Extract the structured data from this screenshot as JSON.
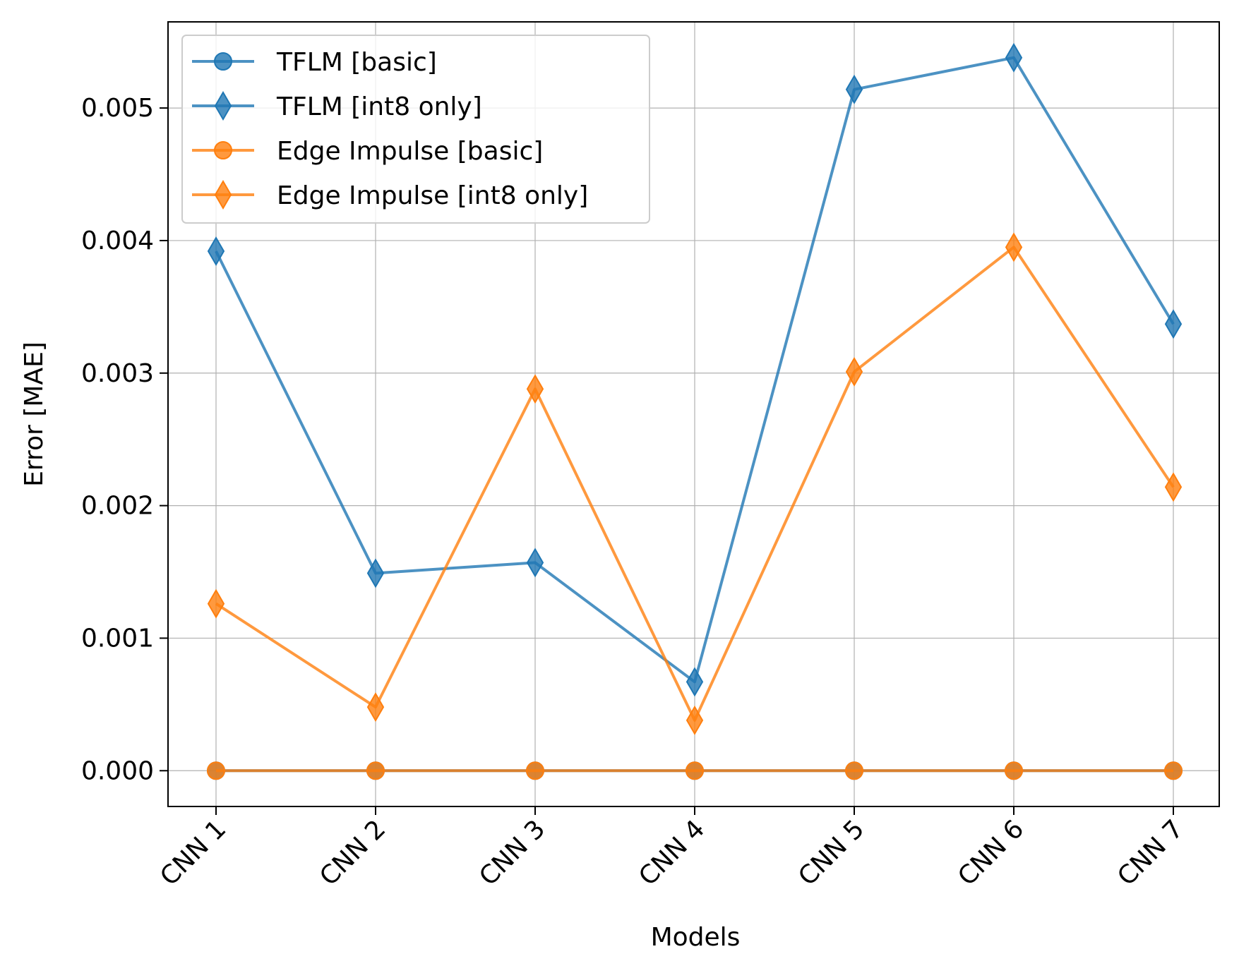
{
  "chart_data": {
    "type": "line",
    "title": "",
    "xlabel": "Models",
    "ylabel": "Error [MAE]",
    "categories": [
      "CNN 1",
      "CNN 2",
      "CNN 3",
      "CNN 4",
      "CNN 5",
      "CNN 6",
      "CNN 7"
    ],
    "ylim": [
      -0.00027,
      0.00565
    ],
    "yticks": [
      0,
      0.001,
      0.002,
      0.003,
      0.004,
      0.005
    ],
    "ytick_labels": [
      "0.000",
      "0.001",
      "0.002",
      "0.003",
      "0.004",
      "0.005"
    ],
    "grid": true,
    "legend_position": "top-left",
    "series": [
      {
        "name": "TFLM [basic]",
        "color": "#1f77b4",
        "marker": "circle",
        "values": [
          0,
          0,
          0,
          0,
          0,
          0,
          0
        ]
      },
      {
        "name": "TFLM [int8 only]",
        "color": "#1f77b4",
        "marker": "diamond",
        "values": [
          0.00392,
          0.00149,
          0.00157,
          0.00067,
          0.00514,
          0.00538,
          0.00337
        ]
      },
      {
        "name": "Edge Impulse [basic]",
        "color": "#ff7f0e",
        "marker": "circle",
        "values": [
          0,
          0,
          0,
          0,
          0,
          0,
          0
        ]
      },
      {
        "name": "Edge Impulse [int8 only]",
        "color": "#ff7f0e",
        "marker": "diamond",
        "values": [
          0.00126,
          0.00048,
          0.00288,
          0.00038,
          0.00301,
          0.00395,
          0.00214
        ]
      }
    ]
  }
}
